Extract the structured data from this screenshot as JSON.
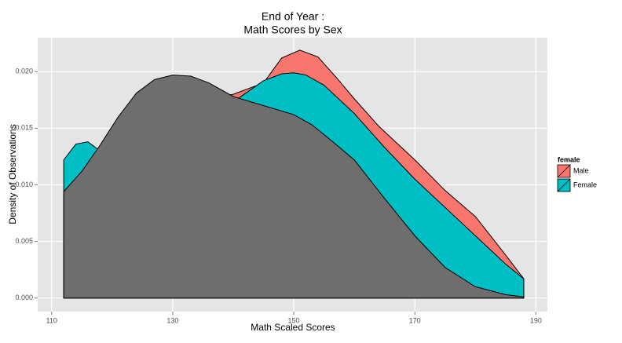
{
  "chart_data": {
    "type": "density",
    "title": "End of Year :",
    "subtitle": "Math Scores by Sex",
    "x_label": "Math Scaled Scores",
    "y_label": "Density of Observations",
    "legend_title": "female",
    "legend_position": "right",
    "grid": true,
    "xlim": [
      107.7,
      191.9
    ],
    "xticks": [
      110,
      130,
      150,
      170,
      190
    ],
    "ylim": [
      -0.0012,
      0.023
    ],
    "yticks": [
      {
        "value": 0,
        "label": "0.000"
      },
      {
        "value": 0.005,
        "label": "0.005"
      },
      {
        "value": 0.01,
        "label": "0.010"
      },
      {
        "value": 0.015,
        "label": "0.015"
      },
      {
        "value": 0.02,
        "label": "0.020"
      }
    ],
    "series": [
      {
        "name": "Male",
        "color": "#F8766D",
        "x": [
          112,
          116,
          120,
          125,
          130,
          135,
          140,
          145,
          148,
          151,
          154,
          157,
          160,
          164,
          170,
          175,
          180,
          185,
          188
        ],
        "values": [
          0.009,
          0.011,
          0.014,
          0.016,
          0.017,
          0.0175,
          0.018,
          0.019,
          0.0212,
          0.0219,
          0.0213,
          0.0195,
          0.0176,
          0.0152,
          0.0122,
          0.0095,
          0.0072,
          0.0038,
          0.0017
        ]
      },
      {
        "name": "Female",
        "color": "#00BFC4",
        "x": [
          112,
          114,
          116,
          118,
          122,
          130,
          138,
          141,
          145,
          148,
          150,
          152,
          155,
          160,
          165,
          170,
          175,
          180,
          185,
          188
        ],
        "values": [
          0.0122,
          0.0136,
          0.0138,
          0.013,
          0.013,
          0.015,
          0.0165,
          0.0177,
          0.0192,
          0.0198,
          0.0199,
          0.0197,
          0.0188,
          0.0163,
          0.0133,
          0.0105,
          0.008,
          0.0055,
          0.003,
          0.0017
        ]
      },
      {
        "color": "#6E6E6E",
        "x": [
          112,
          115,
          118,
          121,
          124,
          127,
          130,
          133,
          136,
          140,
          145,
          150,
          153,
          156,
          160,
          165,
          170,
          175,
          180,
          185,
          188
        ],
        "values": [
          0.0094,
          0.0112,
          0.0135,
          0.016,
          0.0181,
          0.0193,
          0.0197,
          0.0196,
          0.019,
          0.0178,
          0.017,
          0.0162,
          0.0153,
          0.014,
          0.0122,
          0.0088,
          0.0055,
          0.0027,
          0.001,
          0.0003,
          0.0001
        ]
      }
    ]
  }
}
